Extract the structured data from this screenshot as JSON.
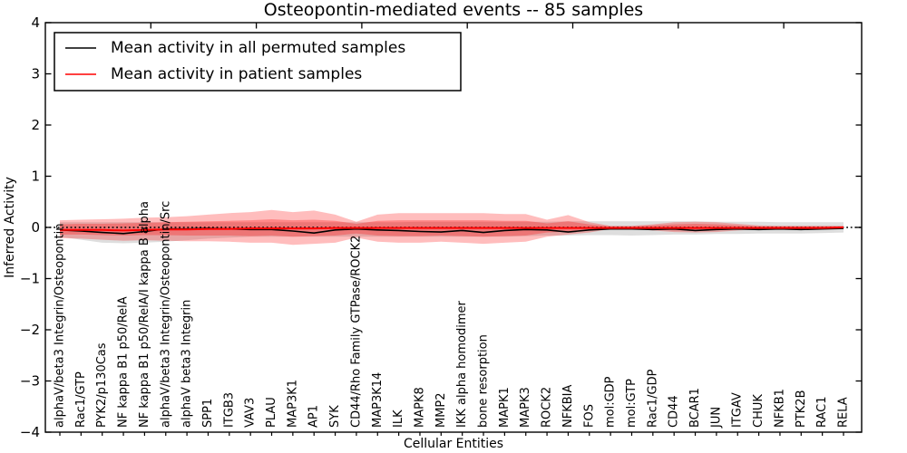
{
  "title": "Osteopontin-mediated events -- 85 samples",
  "legend": {
    "items": [
      {
        "label": "Mean activity in all permuted samples",
        "color": "#000000"
      },
      {
        "label": "Mean activity in patient samples",
        "color": "#ff0000"
      }
    ]
  },
  "colors": {
    "patient_line": "#ff0000",
    "permuted_line": "#000000",
    "zero_line": "#000000",
    "patient_band_outer": "rgba(255,0,0,0.26)",
    "patient_band_inner": "rgba(255,0,0,0.28)",
    "permuted_band": "rgba(0,0,0,0.13)",
    "spine": "#000000"
  },
  "chart_data": {
    "type": "line",
    "title": "Osteopontin-mediated events -- 85 samples",
    "xlabel": "Cellular Entities",
    "ylabel": "Inferred Activity",
    "ylim": [
      -4,
      4
    ],
    "yticks": [
      -4,
      -3,
      -2,
      -1,
      0,
      1,
      2,
      3,
      4
    ],
    "grid": false,
    "legend_position": "upper left",
    "zero_line": 0,
    "categories": [
      "alphaV/beta3 Integrin/Osteopontin",
      "Rac1/GTP",
      "PYK2/p130Cas",
      "NF kappa B1 p50/RelA",
      "NF kappa B1 p50/RelA/I kappa B alpha",
      "alphaV/beta3 Integrin/Osteopontin/Src",
      "alphaV beta3 Integrin",
      "SPP1",
      "ITGB3",
      "VAV3",
      "PLAU",
      "MAP3K1",
      "AP1",
      "SYK",
      "CD44/Rho Family GTPase/ROCK2",
      "MAP3K14",
      "ILK",
      "MAPK8",
      "MMP2",
      "IKK alpha homodimer",
      "bone resorption",
      "MAPK1",
      "MAPK3",
      "ROCK2",
      "NFKBIA",
      "FOS",
      "mol:GDP",
      "mol:GTP",
      "Rac1/GDP",
      "CD44",
      "BCAR1",
      "JUN",
      "ITGAV",
      "CHUK",
      "NFKB1",
      "PTK2B",
      "RAC1",
      "RELA"
    ],
    "series": [
      {
        "name": "Mean activity in all permuted samples",
        "color": "#000000",
        "values": [
          -0.05,
          -0.07,
          -0.1,
          -0.12,
          -0.08,
          -0.03,
          -0.03,
          -0.02,
          -0.03,
          -0.04,
          -0.04,
          -0.07,
          -0.11,
          -0.05,
          -0.03,
          -0.05,
          -0.06,
          -0.08,
          -0.09,
          -0.06,
          -0.1,
          -0.06,
          -0.04,
          -0.05,
          -0.09,
          -0.05,
          -0.03,
          -0.03,
          -0.04,
          -0.03,
          -0.06,
          -0.04,
          -0.03,
          -0.04,
          -0.03,
          -0.04,
          -0.03,
          -0.02
        ]
      },
      {
        "name": "Mean activity in patient samples",
        "color": "#ff0000",
        "values": [
          -0.05,
          -0.05,
          -0.05,
          -0.06,
          -0.05,
          -0.04,
          -0.04,
          -0.03,
          -0.03,
          -0.02,
          -0.02,
          -0.02,
          -0.02,
          -0.01,
          -0.01,
          -0.01,
          -0.01,
          -0.01,
          -0.01,
          -0.01,
          -0.01,
          -0.01,
          -0.01,
          -0.01,
          -0.01,
          -0.01,
          -0.01,
          -0.01,
          -0.01,
          -0.01,
          -0.01,
          -0.01,
          -0.01,
          -0.01,
          -0.01,
          -0.01,
          -0.01,
          0.0
        ]
      }
    ],
    "bands": [
      {
        "name": "permuted-sample-range",
        "color": "rgba(0,0,0,0.13)",
        "lo": [
          -0.18,
          -0.24,
          -0.3,
          -0.31,
          -0.3,
          -0.28,
          -0.25,
          -0.22,
          -0.2,
          -0.18,
          -0.18,
          -0.18,
          -0.18,
          -0.18,
          -0.18,
          -0.18,
          -0.18,
          -0.18,
          -0.18,
          -0.18,
          -0.18,
          -0.18,
          -0.17,
          -0.16,
          -0.16,
          -0.15,
          -0.15,
          -0.16,
          -0.15,
          -0.14,
          -0.14,
          -0.13,
          -0.13,
          -0.12,
          -0.12,
          -0.12,
          -0.11,
          -0.1
        ],
        "hi": [
          0.1,
          0.1,
          0.1,
          0.1,
          0.1,
          0.1,
          0.1,
          0.1,
          0.1,
          0.1,
          0.1,
          0.1,
          0.1,
          0.1,
          0.1,
          0.1,
          0.1,
          0.11,
          0.11,
          0.11,
          0.11,
          0.11,
          0.11,
          0.11,
          0.12,
          0.12,
          0.12,
          0.12,
          0.12,
          0.12,
          0.12,
          0.11,
          0.11,
          0.11,
          0.1,
          0.1,
          0.1,
          0.1
        ]
      },
      {
        "name": "patient-sample-outer-range",
        "color": "rgba(255,0,0,0.26)",
        "lo": [
          -0.21,
          -0.22,
          -0.24,
          -0.26,
          -0.25,
          -0.26,
          -0.27,
          -0.27,
          -0.28,
          -0.3,
          -0.3,
          -0.34,
          -0.32,
          -0.3,
          -0.2,
          -0.28,
          -0.3,
          -0.3,
          -0.28,
          -0.3,
          -0.32,
          -0.3,
          -0.28,
          -0.18,
          -0.14,
          -0.1,
          -0.03,
          -0.03,
          -0.06,
          -0.09,
          -0.1,
          -0.09,
          -0.06,
          -0.04,
          -0.03,
          -0.03,
          -0.03,
          -0.03
        ],
        "hi": [
          0.14,
          0.15,
          0.16,
          0.17,
          0.19,
          0.2,
          0.22,
          0.25,
          0.28,
          0.3,
          0.34,
          0.3,
          0.33,
          0.25,
          0.11,
          0.25,
          0.28,
          0.28,
          0.28,
          0.28,
          0.28,
          0.26,
          0.26,
          0.15,
          0.24,
          0.1,
          0.03,
          0.03,
          0.06,
          0.1,
          0.11,
          0.1,
          0.07,
          0.04,
          0.03,
          0.03,
          0.03,
          0.03
        ]
      },
      {
        "name": "patient-sample-inner-range",
        "color": "rgba(255,0,0,0.28)",
        "lo": [
          -0.14,
          -0.14,
          -0.15,
          -0.16,
          -0.15,
          -0.15,
          -0.16,
          -0.16,
          -0.16,
          -0.17,
          -0.16,
          -0.18,
          -0.17,
          -0.16,
          -0.12,
          -0.16,
          -0.17,
          -0.17,
          -0.16,
          -0.17,
          -0.18,
          -0.17,
          -0.16,
          -0.1,
          -0.08,
          -0.06,
          -0.02,
          -0.02,
          -0.04,
          -0.06,
          -0.06,
          -0.05,
          -0.04,
          -0.02,
          -0.02,
          -0.02,
          -0.02,
          -0.02
        ],
        "hi": [
          0.06,
          0.07,
          0.07,
          0.08,
          0.09,
          0.1,
          0.11,
          0.12,
          0.13,
          0.14,
          0.16,
          0.14,
          0.15,
          0.13,
          0.07,
          0.13,
          0.14,
          0.14,
          0.14,
          0.14,
          0.14,
          0.13,
          0.13,
          0.08,
          0.12,
          0.06,
          0.02,
          0.02,
          0.04,
          0.06,
          0.07,
          0.06,
          0.04,
          0.02,
          0.02,
          0.02,
          0.02,
          0.02
        ]
      }
    ]
  }
}
